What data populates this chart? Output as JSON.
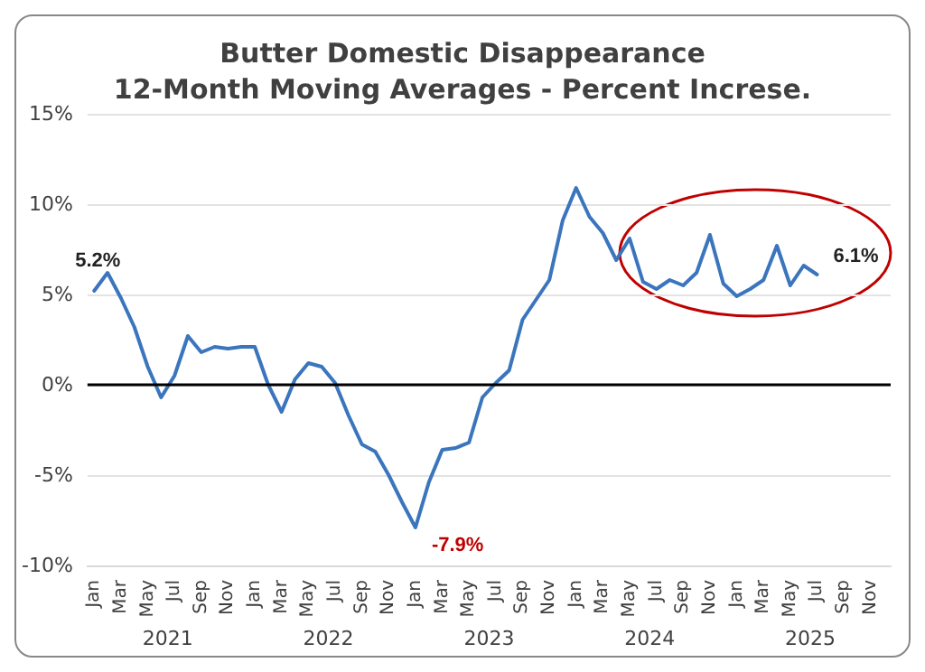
{
  "chart_data": {
    "type": "line",
    "title": "Butter Domestic Disappearance\n12-Month Moving Averages - Percent Increse.",
    "categories": [
      "Jan",
      null,
      "Mar",
      null,
      "May",
      null,
      "Jul",
      null,
      "Sep",
      null,
      "Nov",
      null,
      "Jan",
      null,
      "Mar",
      null,
      "May",
      null,
      "Jul",
      null,
      "Sep",
      null,
      "Nov",
      null,
      "Jan",
      null,
      "Mar",
      null,
      "May",
      null,
      "Jul",
      null,
      "Sep",
      null,
      "Nov",
      null,
      "Jan",
      null,
      "Mar",
      null,
      "May",
      null,
      "Jul",
      null,
      "Sep",
      null,
      "Nov",
      null,
      "Jan",
      null,
      "Mar",
      null,
      "May",
      null,
      "Jul",
      null,
      "Sep",
      null,
      "Nov",
      null
    ],
    "series": [
      {
        "color": "#3a75bd",
        "values": [
          5.2,
          6.2,
          4.8,
          3.2,
          1.0,
          -0.7,
          0.5,
          2.7,
          1.8,
          2.1,
          2.0,
          2.1,
          2.1,
          0.0,
          -1.5,
          0.3,
          1.2,
          1.0,
          0.1,
          -1.7,
          -3.3,
          -3.7,
          -5.0,
          -6.5,
          -7.9,
          -5.4,
          -3.6,
          -3.5,
          -3.2,
          -0.7,
          0.1,
          0.8,
          3.6,
          4.7,
          5.8,
          9.1,
          10.9,
          9.3,
          8.4,
          6.9,
          8.1,
          5.7,
          5.3,
          5.8,
          5.5,
          6.2,
          8.3,
          5.6,
          4.9,
          5.3,
          5.8,
          7.7,
          5.5,
          6.6,
          6.1,
          null,
          null,
          null,
          null,
          null
        ],
        "value_labels": [
          "5.2%",
          null,
          null,
          null,
          null,
          null,
          null,
          null,
          null,
          null,
          null,
          null,
          null,
          null,
          null,
          null,
          null,
          null,
          null,
          null,
          null,
          null,
          null,
          null,
          "-7.9%",
          null,
          null,
          null,
          null,
          null,
          null,
          null,
          null,
          null,
          null,
          null,
          null,
          null,
          null,
          null,
          null,
          null,
          null,
          null,
          null,
          null,
          null,
          null,
          null,
          null,
          null,
          null,
          null,
          null,
          "6.1%",
          null,
          null,
          null,
          null,
          null
        ]
      }
    ],
    "ylim": [
      -10,
      15
    ],
    "yticks": [
      {
        "value": -10,
        "label": "-10%"
      },
      {
        "value": -5,
        "label": "-5%"
      },
      {
        "value": 0,
        "label": "0%"
      },
      {
        "value": 5,
        "label": "5%"
      },
      {
        "value": 10,
        "label": "10%"
      },
      {
        "value": 15,
        "label": "15%"
      }
    ],
    "grid": "y",
    "marker": "none",
    "line_style": "solid",
    "ref_lines": [
      {
        "axis": "y",
        "value": 0,
        "color": "#000000"
      }
    ],
    "annotations": [
      "2021",
      "2022",
      "2023",
      "2024",
      "2025"
    ]
  }
}
